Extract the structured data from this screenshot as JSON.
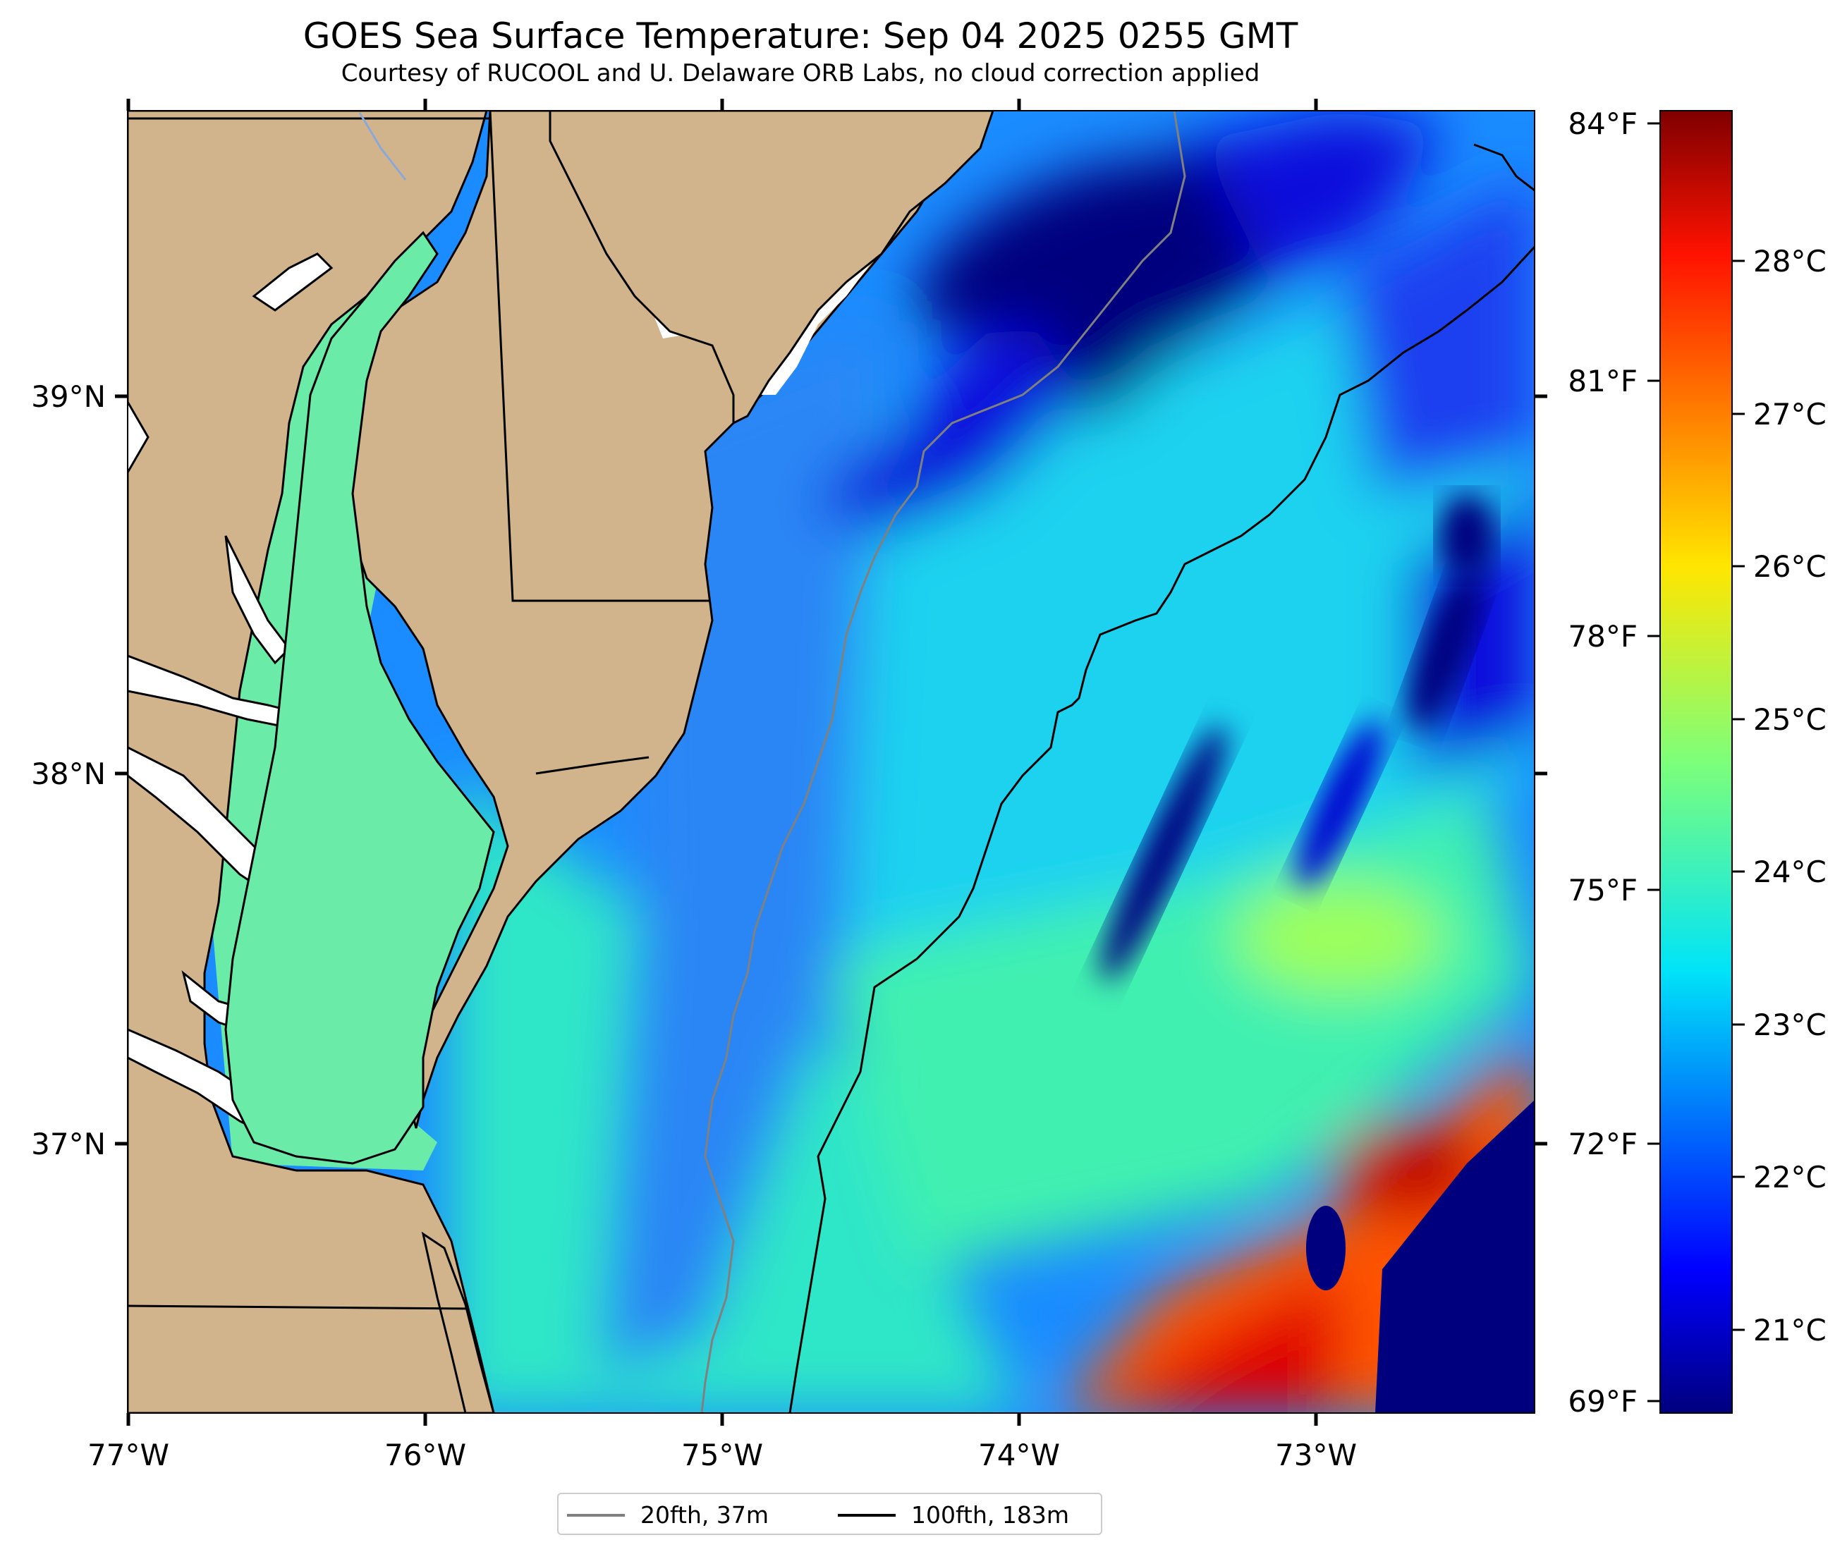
{
  "title": "GOES Sea Surface Temperature: Sep 04 2025 0255 GMT",
  "subtitle": "Courtesy of RUCOOL and U. Delaware ORB Labs, no cloud correction applied",
  "map": {
    "lon_ticks": [
      "77°W",
      "76°W",
      "75°W",
      "74°W",
      "73°W"
    ],
    "lat_ticks": [
      "39°N",
      "38°N",
      "37°N"
    ],
    "land_color": "#d2b48c",
    "coast_color": "#000000"
  },
  "colorbar": {
    "colormap": "jet",
    "celsius_ticks": [
      "28°C",
      "27°C",
      "26°C",
      "25°C",
      "24°C",
      "23°C",
      "22°C",
      "21°C"
    ],
    "fahrenheit_ticks": [
      "84°F",
      "81°F",
      "78°F",
      "75°F",
      "72°F",
      "69°F"
    ]
  },
  "legend": {
    "items": [
      {
        "label": "20fth, 37m",
        "color": "#808080"
      },
      {
        "label": "100fth, 183m",
        "color": "#000000"
      }
    ]
  }
}
